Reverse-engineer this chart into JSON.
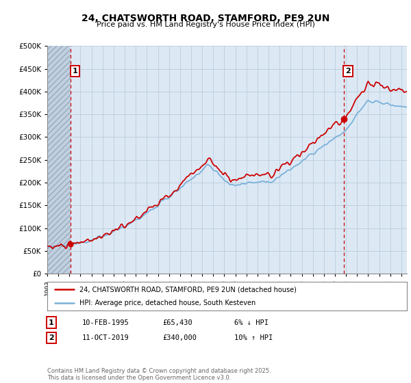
{
  "title": "24, CHATSWORTH ROAD, STAMFORD, PE9 2UN",
  "subtitle": "Price paid vs. HM Land Registry's House Price Index (HPI)",
  "legend_line1": "24, CHATSWORTH ROAD, STAMFORD, PE9 2UN (detached house)",
  "legend_line2": "HPI: Average price, detached house, South Kesteven",
  "transaction1_date": "10-FEB-1995",
  "transaction1_price": "£65,430",
  "transaction1_note": "6% ↓ HPI",
  "transaction2_date": "11-OCT-2019",
  "transaction2_price": "£340,000",
  "transaction2_note": "10% ↑ HPI",
  "copyright": "Contains HM Land Registry data © Crown copyright and database right 2025.\nThis data is licensed under the Open Government Licence v3.0.",
  "ylim": [
    0,
    500000
  ],
  "xlim_start": 1993.0,
  "xlim_end": 2025.5,
  "transaction1_x": 1995.1,
  "transaction1_y": 65430,
  "transaction2_x": 2019.78,
  "transaction2_y": 340000,
  "bg_color": "#dce9f5",
  "hatch_color": "#c0d0e0",
  "line_color_hpi": "#7ab0d8",
  "line_color_price": "#cc0000",
  "vline_color": "#cc0000"
}
